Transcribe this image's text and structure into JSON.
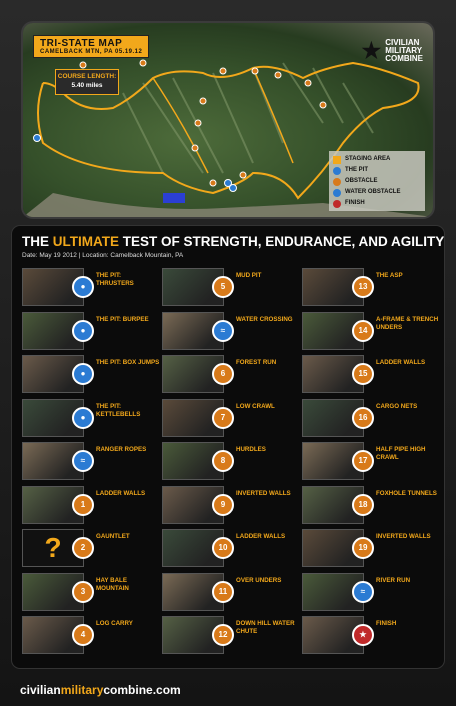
{
  "map": {
    "title": "TRI-STATE MAP",
    "subtitle": "CAMELBACK MTN, PA  05.19.12",
    "course_label": "COURSE LENGTH:",
    "course_length": "5.40 miles",
    "brand_lines": [
      "CIVILIAN",
      "MILITARY",
      "COMBINE"
    ],
    "legend": [
      {
        "label": "STAGING AREA",
        "icon": "star-icon",
        "color": "#f2a81b"
      },
      {
        "label": "THE PIT",
        "icon": "kettlebell-icon",
        "color": "#2b7bd3"
      },
      {
        "label": "OBSTACLE",
        "icon": "obstacle-icon",
        "color": "#d87a1a"
      },
      {
        "label": "WATER OBSTACLE",
        "icon": "water-icon",
        "color": "#2b7bd3"
      },
      {
        "label": "FINISH",
        "icon": "finish-icon",
        "color": "#c02a2a"
      }
    ]
  },
  "headline": {
    "pre": "THE ",
    "highlight": "ULTIMATE",
    "post": " TEST OF STRENGTH, ENDURANCE, AND AGILITY"
  },
  "dateline": "Date: May 19 2012  |  Location: Camelback Mountain, PA",
  "obstacles": [
    [
      {
        "name": "THE PIT: THRUSTERS",
        "badge": "",
        "type": "pit"
      },
      {
        "name": "THE PIT: BURPEE",
        "badge": "",
        "type": "pit"
      },
      {
        "name": "THE PIT: BOX JUMPS",
        "badge": "",
        "type": "pit"
      },
      {
        "name": "THE PIT: KETTLEBELLS",
        "badge": "",
        "type": "pit"
      },
      {
        "name": "RANGER ROPES",
        "badge": "",
        "type": "water"
      },
      {
        "name": "LADDER WALLS",
        "badge": "1",
        "type": "obstacle"
      },
      {
        "name": "GAUNTLET",
        "badge": "2",
        "type": "obstacle"
      },
      {
        "name": "HAY BALE MOUNTAIN",
        "badge": "3",
        "type": "obstacle"
      },
      {
        "name": "LOG CARRY",
        "badge": "4",
        "type": "obstacle"
      }
    ],
    [
      {
        "name": "MUD PIT",
        "badge": "5",
        "type": "obstacle"
      },
      {
        "name": "WATER CROSSING",
        "badge": "",
        "type": "water"
      },
      {
        "name": "FOREST RUN",
        "badge": "6",
        "type": "obstacle"
      },
      {
        "name": "LOW CRAWL",
        "badge": "7",
        "type": "obstacle"
      },
      {
        "name": "HURDLES",
        "badge": "8",
        "type": "obstacle"
      },
      {
        "name": "INVERTED WALLS",
        "badge": "9",
        "type": "obstacle"
      },
      {
        "name": "LADDER WALLS",
        "badge": "10",
        "type": "obstacle"
      },
      {
        "name": "OVER UNDERS",
        "badge": "11",
        "type": "obstacle"
      },
      {
        "name": "DOWN HILL WATER CHUTE",
        "badge": "12",
        "type": "obstacle"
      }
    ],
    [
      {
        "name": "THE ASP",
        "badge": "13",
        "type": "obstacle"
      },
      {
        "name": "A-FRAME & TRENCH UNDERS",
        "badge": "14",
        "type": "obstacle"
      },
      {
        "name": "LADDER WALLS",
        "badge": "15",
        "type": "obstacle"
      },
      {
        "name": "CARGO NETS",
        "badge": "16",
        "type": "obstacle"
      },
      {
        "name": "HALF PIPE HIGH CRAWL",
        "badge": "17",
        "type": "obstacle"
      },
      {
        "name": "FOXHOLE TUNNELS",
        "badge": "18",
        "type": "obstacle"
      },
      {
        "name": "INVERTED WALLS",
        "badge": "19",
        "type": "obstacle"
      },
      {
        "name": "RIVER RUN",
        "badge": "",
        "type": "water"
      },
      {
        "name": "FINISH",
        "badge": "",
        "type": "finish"
      }
    ]
  ],
  "footer": {
    "pre": "civilian",
    "highlight": "military",
    "post": "combine.com"
  }
}
